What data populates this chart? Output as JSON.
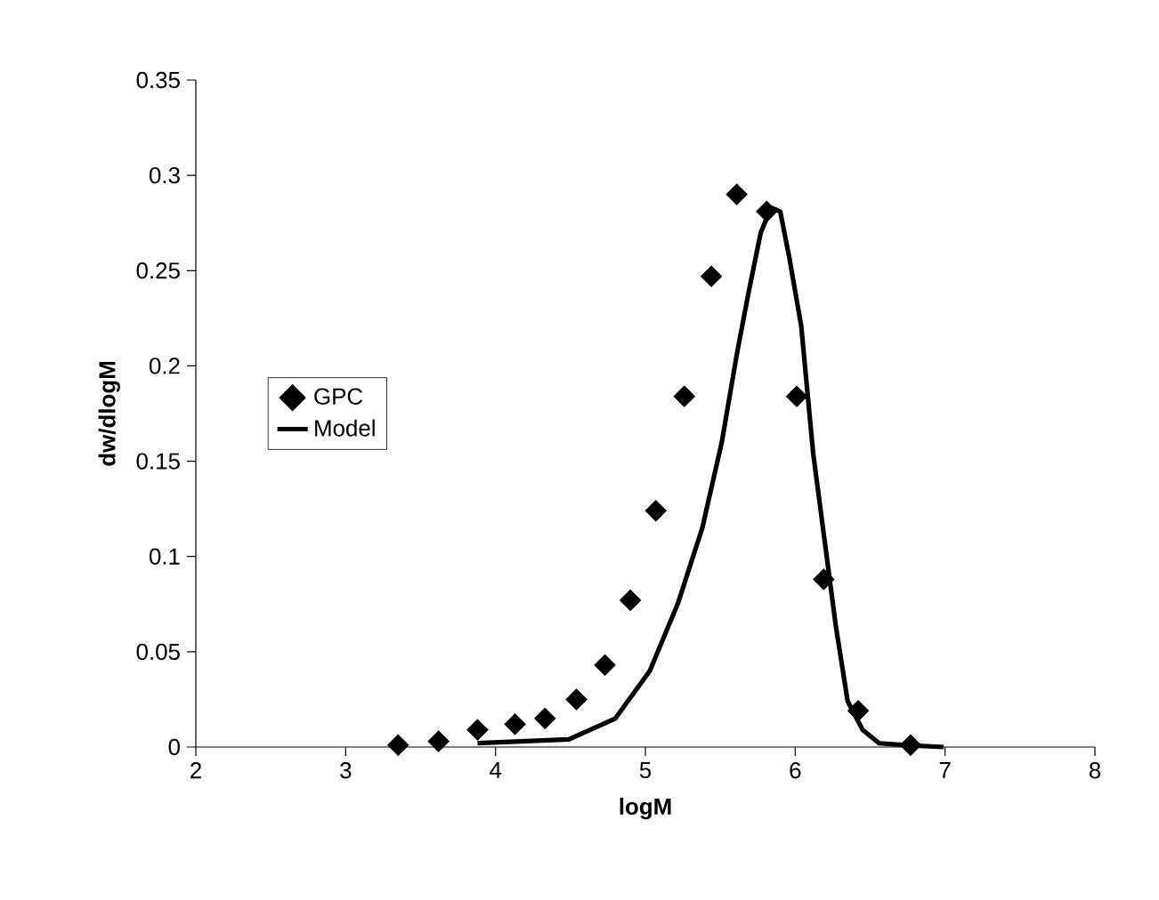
{
  "chart_data": {
    "type": "scatter",
    "xlabel": "logM",
    "ylabel": "dw/dlogM",
    "xlim": [
      2,
      8
    ],
    "ylim": [
      0,
      0.35
    ],
    "xticks": [
      2,
      3,
      4,
      5,
      6,
      7,
      8
    ],
    "yticks": [
      0,
      0.05,
      0.1,
      0.15,
      0.2,
      0.25,
      0.3,
      0.35
    ],
    "grid": false,
    "legend": "left",
    "series": [
      {
        "name": "GPC",
        "marker": "diamond",
        "color": "#000000",
        "x": [
          3.35,
          3.62,
          3.88,
          4.13,
          4.33,
          4.54,
          4.73,
          4.9,
          5.07,
          5.26,
          5.44,
          5.61,
          5.81,
          6.01,
          6.19,
          6.42,
          6.77
        ],
        "values": [
          0.001,
          0.003,
          0.009,
          0.012,
          0.015,
          0.025,
          0.043,
          0.077,
          0.124,
          0.184,
          0.247,
          0.29,
          0.281,
          0.184,
          0.088,
          0.019,
          0.001
        ]
      },
      {
        "name": "Model",
        "type": "line",
        "marker": "none",
        "line_style": "solid",
        "color": "#000000",
        "x": [
          3.88,
          4.49,
          4.8,
          5.03,
          5.22,
          5.38,
          5.51,
          5.61,
          5.69,
          5.77,
          5.84,
          5.9,
          5.96,
          6.04,
          6.12,
          6.19,
          6.27,
          6.35,
          6.45,
          6.56,
          6.74,
          6.99
        ],
        "values": [
          0.002,
          0.004,
          0.015,
          0.04,
          0.076,
          0.115,
          0.16,
          0.206,
          0.239,
          0.27,
          0.283,
          0.281,
          0.257,
          0.221,
          0.154,
          0.112,
          0.064,
          0.024,
          0.009,
          0.002,
          0.001,
          0
        ]
      }
    ]
  }
}
